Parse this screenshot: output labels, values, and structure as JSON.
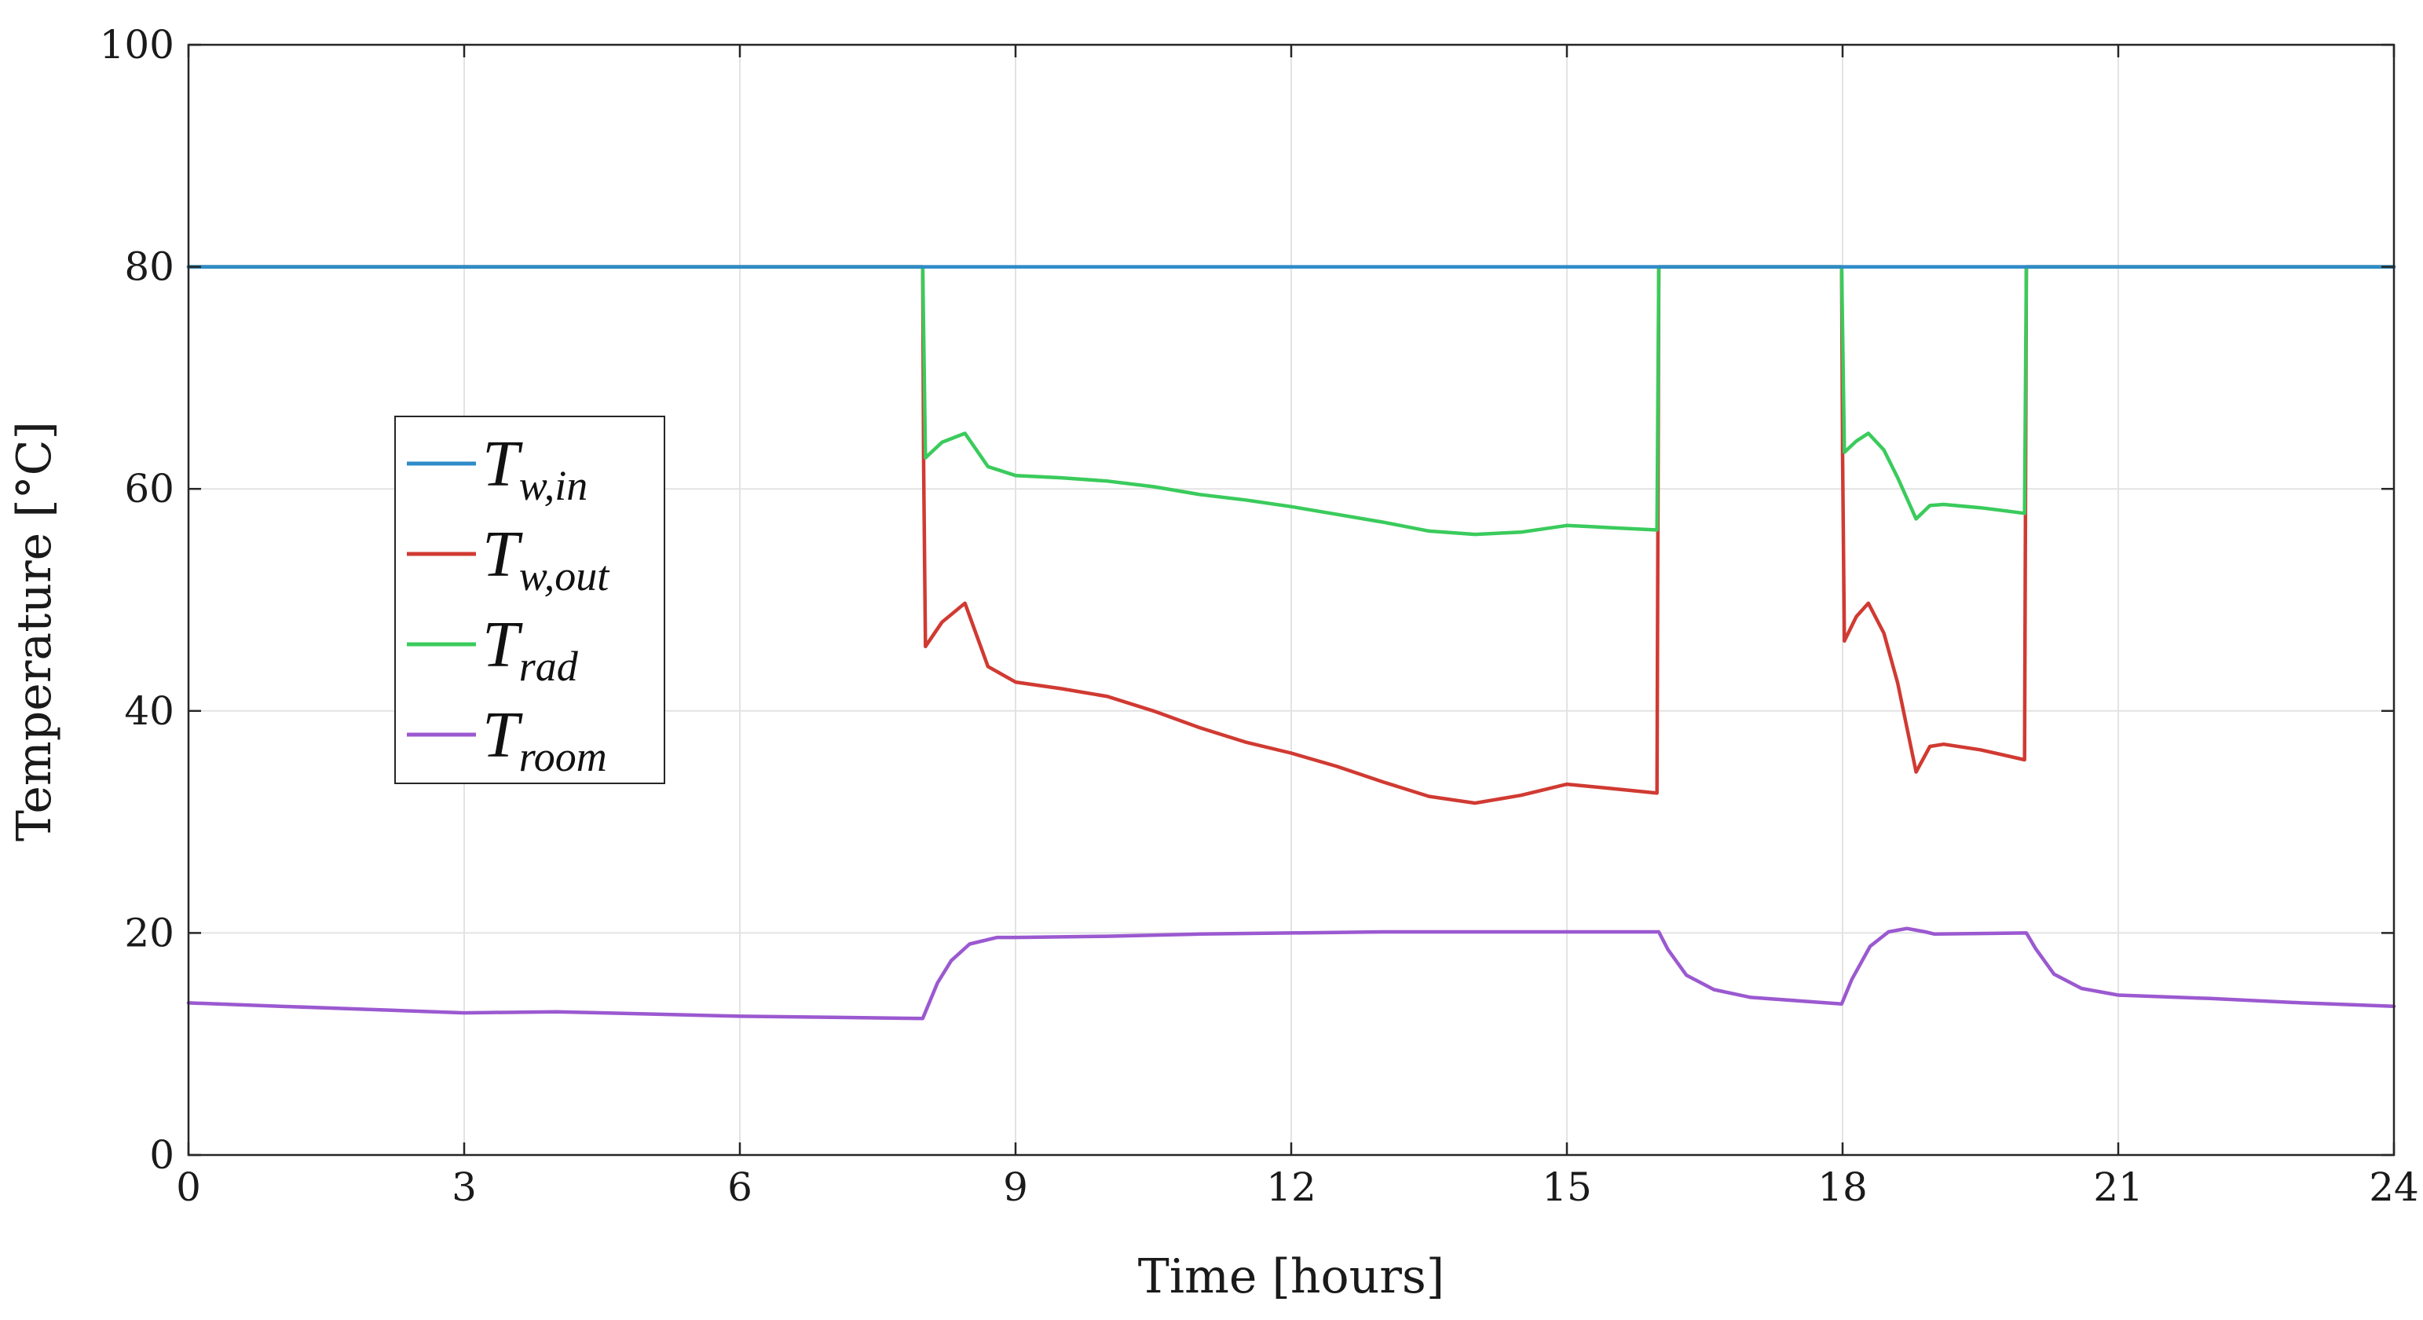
{
  "chart_data": {
    "type": "line",
    "title": "",
    "xlabel": "Time [hours]",
    "ylabel": "Temperature [°C]",
    "xlim": [
      0,
      24
    ],
    "ylim": [
      0,
      100
    ],
    "xticks": [
      0,
      3,
      6,
      9,
      12,
      15,
      18,
      21,
      24
    ],
    "yticks": [
      0,
      20,
      40,
      60,
      80,
      100
    ],
    "grid": true,
    "legend_position": "center-left",
    "series": [
      {
        "name": "T_w,in",
        "legend_main": "T",
        "legend_sub": "w,in",
        "color": "#2E8BC8",
        "points": [
          [
            0,
            80
          ],
          [
            24,
            80
          ]
        ]
      },
      {
        "name": "T_w,out",
        "legend_main": "T",
        "legend_sub": "w,out",
        "color": "#D03A32",
        "points": [
          [
            0,
            80
          ],
          [
            7.99,
            80
          ],
          [
            8.0,
            62
          ],
          [
            8.02,
            45.8
          ],
          [
            8.2,
            48
          ],
          [
            8.45,
            49.7
          ],
          [
            8.7,
            44
          ],
          [
            9.0,
            42.6
          ],
          [
            9.5,
            42
          ],
          [
            10.0,
            41.3
          ],
          [
            10.5,
            40
          ],
          [
            11.0,
            38.5
          ],
          [
            11.5,
            37.2
          ],
          [
            12.0,
            36.2
          ],
          [
            12.5,
            35
          ],
          [
            13.0,
            33.6
          ],
          [
            13.5,
            32.3
          ],
          [
            14.0,
            31.7
          ],
          [
            14.5,
            32.4
          ],
          [
            15.0,
            33.4
          ],
          [
            15.5,
            33
          ],
          [
            15.98,
            32.6
          ],
          [
            16.0,
            80
          ],
          [
            17.99,
            80
          ],
          [
            18.0,
            63
          ],
          [
            18.02,
            46.3
          ],
          [
            18.15,
            48.5
          ],
          [
            18.28,
            49.7
          ],
          [
            18.45,
            47
          ],
          [
            18.6,
            42.5
          ],
          [
            18.8,
            34.5
          ],
          [
            18.95,
            36.8
          ],
          [
            19.1,
            37
          ],
          [
            19.5,
            36.5
          ],
          [
            19.98,
            35.6
          ],
          [
            20.0,
            80
          ],
          [
            24,
            80
          ]
        ]
      },
      {
        "name": "T_rad",
        "legend_main": "T",
        "legend_sub": "rad",
        "color": "#3ACB5C",
        "points": [
          [
            0,
            80
          ],
          [
            7.99,
            80
          ],
          [
            8.02,
            62.8
          ],
          [
            8.2,
            64.2
          ],
          [
            8.45,
            65
          ],
          [
            8.7,
            62
          ],
          [
            9.0,
            61.2
          ],
          [
            9.5,
            61
          ],
          [
            10.0,
            60.7
          ],
          [
            10.5,
            60.2
          ],
          [
            11.0,
            59.5
          ],
          [
            11.5,
            59
          ],
          [
            12.0,
            58.4
          ],
          [
            12.5,
            57.7
          ],
          [
            13.0,
            57
          ],
          [
            13.5,
            56.2
          ],
          [
            14.0,
            55.9
          ],
          [
            14.5,
            56.1
          ],
          [
            15.0,
            56.7
          ],
          [
            15.5,
            56.5
          ],
          [
            15.98,
            56.3
          ],
          [
            16.0,
            80
          ],
          [
            17.99,
            80
          ],
          [
            18.02,
            63.3
          ],
          [
            18.15,
            64.3
          ],
          [
            18.28,
            65
          ],
          [
            18.45,
            63.5
          ],
          [
            18.6,
            61
          ],
          [
            18.8,
            57.3
          ],
          [
            18.95,
            58.5
          ],
          [
            19.1,
            58.6
          ],
          [
            19.5,
            58.3
          ],
          [
            19.98,
            57.8
          ],
          [
            20.0,
            80
          ],
          [
            24,
            80
          ]
        ]
      },
      {
        "name": "T_room",
        "legend_main": "T",
        "legend_sub": "room",
        "color": "#9B59D0",
        "points": [
          [
            0,
            13.7
          ],
          [
            1,
            13.4
          ],
          [
            2,
            13.1
          ],
          [
            3,
            12.8
          ],
          [
            4,
            12.9
          ],
          [
            5,
            12.7
          ],
          [
            6,
            12.5
          ],
          [
            7,
            12.4
          ],
          [
            7.99,
            12.3
          ],
          [
            8.15,
            15.5
          ],
          [
            8.3,
            17.5
          ],
          [
            8.5,
            19
          ],
          [
            8.8,
            19.6
          ],
          [
            9.0,
            19.6
          ],
          [
            10.0,
            19.7
          ],
          [
            11.0,
            19.9
          ],
          [
            12.0,
            20
          ],
          [
            13.0,
            20.1
          ],
          [
            14.0,
            20.1
          ],
          [
            15.0,
            20.1
          ],
          [
            16.0,
            20.1
          ],
          [
            16.1,
            18.5
          ],
          [
            16.3,
            16.2
          ],
          [
            16.6,
            14.9
          ],
          [
            17.0,
            14.2
          ],
          [
            17.5,
            13.9
          ],
          [
            17.99,
            13.6
          ],
          [
            18.1,
            15.8
          ],
          [
            18.3,
            18.8
          ],
          [
            18.5,
            20.1
          ],
          [
            18.7,
            20.4
          ],
          [
            18.9,
            20.1
          ],
          [
            19.0,
            19.9
          ],
          [
            20.0,
            20
          ],
          [
            20.1,
            18.6
          ],
          [
            20.3,
            16.3
          ],
          [
            20.6,
            15
          ],
          [
            21.0,
            14.4
          ],
          [
            22.0,
            14.1
          ],
          [
            23.0,
            13.7
          ],
          [
            24.0,
            13.4
          ]
        ]
      }
    ]
  }
}
